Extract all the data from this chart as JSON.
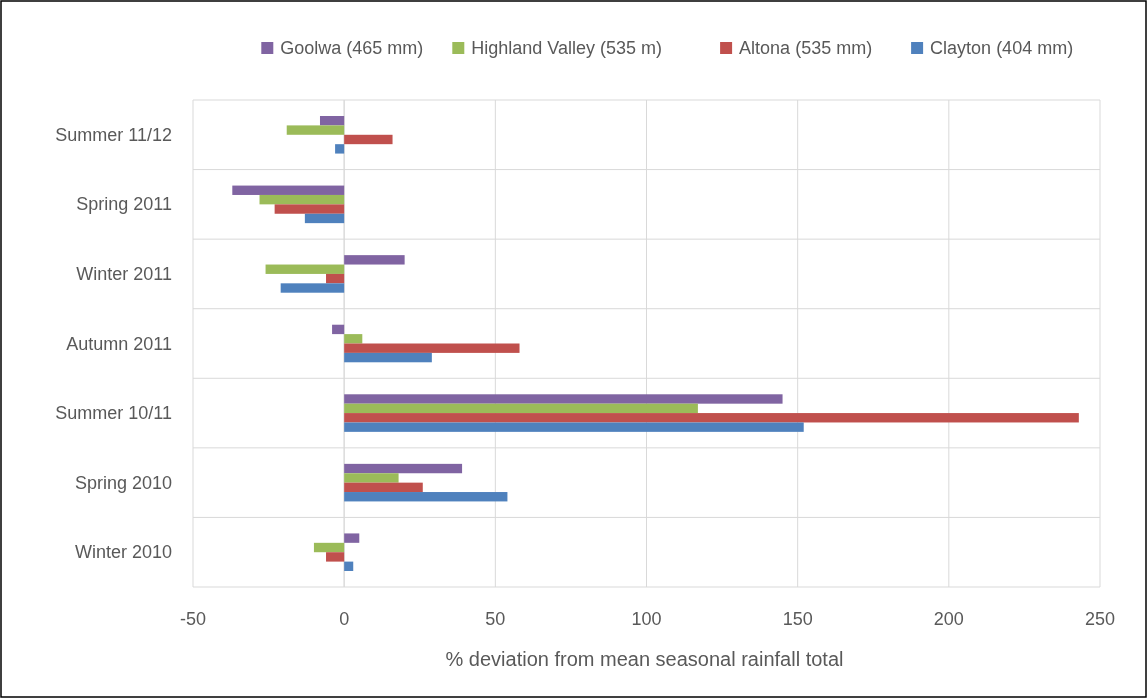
{
  "chart_data": {
    "type": "bar",
    "orientation": "horizontal",
    "xlabel": "% deviation from mean seasonal rainfall total",
    "categories": [
      "Summer 11/12",
      "Spring 2011",
      "Winter 2011",
      "Autumn 2011",
      "Summer 10/11",
      "Spring 2010",
      "Winter 2010"
    ],
    "series": [
      {
        "name": "Goolwa (465 mm)",
        "color": "#8064a2",
        "values": [
          -8,
          -37,
          20,
          -4,
          145,
          39,
          5
        ]
      },
      {
        "name": "Highland Valley (535 m)",
        "color": "#9bbb59",
        "values": [
          -19,
          -28,
          -26,
          6,
          117,
          18,
          -10
        ]
      },
      {
        "name": "Altona (535 mm)",
        "color": "#c0504d",
        "values": [
          16,
          -23,
          -6,
          58,
          243,
          26,
          -6
        ]
      },
      {
        "name": "Clayton (404 mm)",
        "color": "#4f81bd",
        "values": [
          -3,
          -13,
          -21,
          29,
          152,
          54,
          3
        ]
      }
    ],
    "xlim": [
      -50,
      250
    ],
    "xticks": [
      -50,
      0,
      50,
      100,
      150,
      200,
      250
    ],
    "grid": true,
    "legend": "top"
  }
}
